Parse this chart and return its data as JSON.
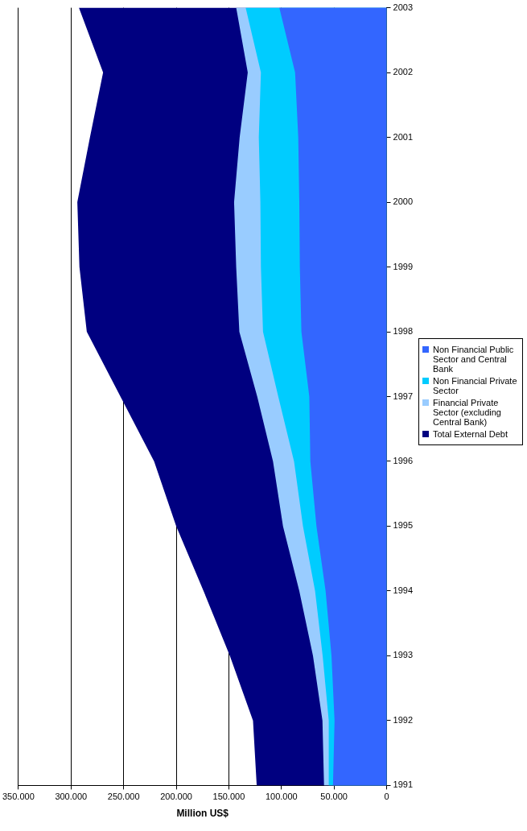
{
  "chart_data": {
    "type": "area",
    "orientation": "horizontal",
    "xlabel": "Million US$",
    "categories": [
      "2003",
      "2002",
      "2001",
      "2000",
      "1999",
      "1998",
      "1997",
      "1996",
      "1995",
      "1994",
      "1993",
      "1992",
      "1991"
    ],
    "series": [
      {
        "name": "Non Financial Public Sector and Central Bank",
        "color": "#3366ff",
        "values": [
          102000,
          87000,
          84000,
          83000,
          82500,
          81000,
          73500,
          72500,
          66700,
          58000,
          52400,
          49500,
          51000
        ]
      },
      {
        "name": "Non Financial Private Sector",
        "color": "#00ccff",
        "values": [
          134000,
          119500,
          121500,
          120000,
          119500,
          117500,
          103000,
          88000,
          79500,
          68000,
          60800,
          55000,
          55000
        ]
      },
      {
        "name": "Financial Private Sector (excluding Central Bank)",
        "color": "#99ccff",
        "values": [
          143000,
          132000,
          139700,
          145000,
          143000,
          140000,
          123000,
          108000,
          98500,
          83000,
          70000,
          61000,
          59500
        ]
      },
      {
        "name": "Total External Debt",
        "color": "#000080",
        "values": [
          292500,
          269500,
          282000,
          294000,
          292000,
          285000,
          253000,
          221000,
          200000,
          174000,
          149000,
          127000,
          123500
        ]
      }
    ],
    "xlim": [
      350000,
      0
    ],
    "xticks": [
      {
        "value": 350000,
        "label": "350.000"
      },
      {
        "value": 300000,
        "label": "300.000"
      },
      {
        "value": 250000,
        "label": "250.000"
      },
      {
        "value": 200000,
        "label": "200.000"
      },
      {
        "value": 150000,
        "label": "150.000"
      },
      {
        "value": 100000,
        "label": "100.000"
      },
      {
        "value": 50000,
        "label": "50.000"
      },
      {
        "value": 0,
        "label": "0"
      }
    ],
    "grid": "x",
    "legend": "right"
  }
}
